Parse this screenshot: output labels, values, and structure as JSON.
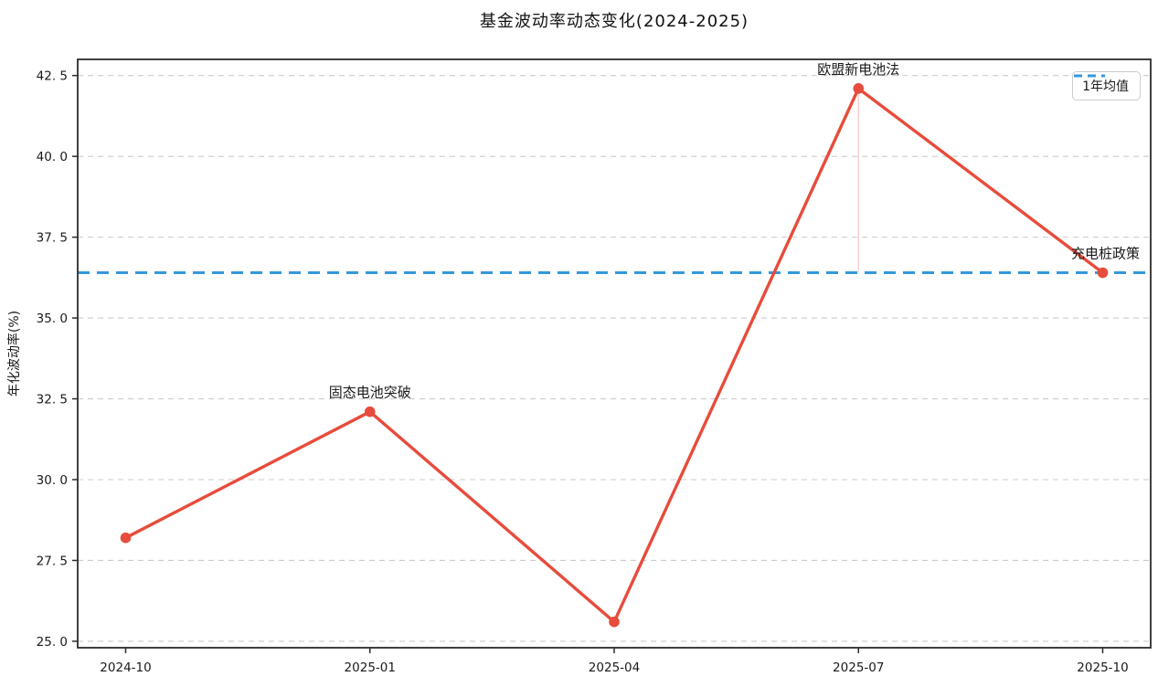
{
  "chart": {
    "title": "基金波动率动态变化(2024-2025)"
  },
  "chart_data": {
    "type": "line",
    "title": "基金波动率动态变化(2024-2025)",
    "xlabel": "",
    "ylabel": "年化波动率(%)",
    "x": [
      "2024-10",
      "2025-01",
      "2025-04",
      "2025-07",
      "2025-10"
    ],
    "series": [
      {
        "name": "年化波动率",
        "values": [
          28.2,
          32.1,
          25.6,
          42.1,
          36.4
        ]
      }
    ],
    "mean_line": {
      "value": 36.4,
      "label": "1年均值"
    },
    "annotations": [
      {
        "label": "固态电池突破",
        "x": "2025-01",
        "y": 32.1,
        "vline": false
      },
      {
        "label": "欧盟新电池法",
        "x": "2025-07",
        "y": 42.1,
        "vline": true
      },
      {
        "label": "充电桩政策",
        "x": "2025-10",
        "y": 36.4,
        "vline": false
      }
    ],
    "yticks": {
      "values": [
        25.0,
        27.5,
        30.0,
        32.5,
        35.0,
        37.5,
        40.0,
        42.5
      ],
      "labels": [
        "25. 0",
        "27. 5",
        "30. 0",
        "32. 5",
        "35. 0",
        "37. 5",
        "40. 0",
        "42. 5"
      ]
    },
    "ylim": [
      24.8,
      43.0
    ],
    "grid": "horizontal-dashed",
    "legend_position": "upper right",
    "colors": {
      "line": "#e74c3c",
      "mean": "#3498db",
      "grid": "#cccccc",
      "spine": "#2b2b2b",
      "text": "#1a1a1a",
      "event_vline": "#e74c3c"
    }
  }
}
